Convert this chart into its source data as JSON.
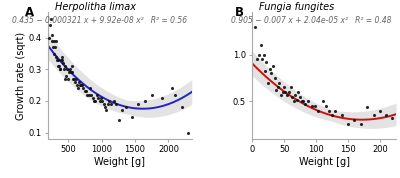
{
  "panel_A": {
    "title": "Herpolitha limax",
    "equation": "0.435 − 0.000321 x + 9.92e-08 x²   R² = 0.56",
    "curve_color": "#2222cc",
    "a": 0.435,
    "b": -0.000321,
    "c": 9.92e-08,
    "x_data": [
      210,
      230,
      245,
      255,
      265,
      280,
      290,
      295,
      305,
      315,
      325,
      335,
      345,
      355,
      365,
      375,
      385,
      395,
      405,
      415,
      425,
      435,
      450,
      460,
      475,
      490,
      505,
      520,
      535,
      545,
      555,
      565,
      575,
      585,
      600,
      615,
      630,
      645,
      660,
      675,
      690,
      710,
      730,
      750,
      770,
      790,
      810,
      830,
      850,
      870,
      890,
      910,
      930,
      950,
      970,
      990,
      1010,
      1030,
      1050,
      1070,
      1090,
      1110,
      1140,
      1180,
      1220,
      1260,
      1300,
      1370,
      1450,
      1550,
      1650,
      1750,
      1900,
      2050,
      2100,
      2200,
      2300
    ],
    "y_data": [
      0.4,
      0.44,
      0.46,
      0.41,
      0.39,
      0.37,
      0.39,
      0.35,
      0.37,
      0.39,
      0.34,
      0.33,
      0.33,
      0.31,
      0.31,
      0.3,
      0.3,
      0.33,
      0.34,
      0.33,
      0.32,
      0.3,
      0.31,
      0.27,
      0.28,
      0.3,
      0.27,
      0.29,
      0.3,
      0.29,
      0.29,
      0.31,
      0.27,
      0.27,
      0.26,
      0.27,
      0.25,
      0.24,
      0.26,
      0.25,
      0.25,
      0.25,
      0.24,
      0.23,
      0.23,
      0.22,
      0.22,
      0.24,
      0.22,
      0.21,
      0.2,
      0.2,
      0.22,
      0.21,
      0.2,
      0.21,
      0.2,
      0.19,
      0.18,
      0.17,
      0.19,
      0.2,
      0.19,
      0.2,
      0.19,
      0.14,
      0.17,
      0.18,
      0.15,
      0.19,
      0.2,
      0.22,
      0.21,
      0.24,
      0.22,
      0.18,
      0.1
    ],
    "xlim": [
      200,
      2350
    ],
    "ylim": [
      0.08,
      0.48
    ],
    "xticks": [
      500,
      1000,
      1500,
      2000
    ],
    "yticks": [
      0.1,
      0.2,
      0.3,
      0.4
    ],
    "xlabel": "Weight [g]",
    "ylabel": "Growth rate (sqrt)",
    "se_base": 0.022,
    "se_slope": 1.8e-05
  },
  "panel_B": {
    "title": "Fungia fungites",
    "equation": "0.905 − 0.007 x + 2.04e-05 x²   R² = 0.48",
    "curve_color": "#cc1111",
    "a": 0.905,
    "b": -0.007,
    "c": 2.04e-05,
    "x_data": [
      5,
      8,
      10,
      13,
      16,
      18,
      20,
      22,
      25,
      28,
      30,
      33,
      36,
      38,
      40,
      42,
      45,
      48,
      50,
      52,
      55,
      57,
      60,
      62,
      65,
      67,
      70,
      72,
      75,
      78,
      80,
      83,
      88,
      93,
      98,
      103,
      110,
      115,
      120,
      125,
      130,
      140,
      150,
      160,
      170,
      180,
      190,
      200,
      210,
      218
    ],
    "y_data": [
      1.3,
      0.95,
      1.0,
      1.1,
      0.95,
      1.0,
      0.82,
      0.92,
      0.7,
      0.85,
      0.8,
      0.88,
      0.75,
      0.62,
      0.65,
      0.7,
      0.57,
      0.6,
      0.65,
      0.6,
      0.57,
      0.6,
      0.65,
      0.55,
      0.5,
      0.57,
      0.52,
      0.6,
      0.55,
      0.5,
      0.5,
      0.47,
      0.5,
      0.45,
      0.45,
      0.4,
      0.5,
      0.45,
      0.4,
      0.35,
      0.4,
      0.35,
      0.26,
      0.3,
      0.26,
      0.44,
      0.36,
      0.4,
      0.35,
      0.32
    ],
    "xlim": [
      0,
      225
    ],
    "ylim": [
      0.1,
      1.45
    ],
    "xticks": [
      0,
      50,
      100,
      150,
      200
    ],
    "yticks": [
      0.5,
      1.0
    ],
    "xlabel": "Weight [g]",
    "ylabel": "",
    "se_base": 0.06,
    "se_slope": 0.0006
  },
  "bg_color": "#ffffff",
  "plot_bg_color": "#ffffff",
  "dot_color": "#111111",
  "shade_color": "#bbbbbb",
  "eq_color": "#666666",
  "eq_fontsize": 5.5
}
